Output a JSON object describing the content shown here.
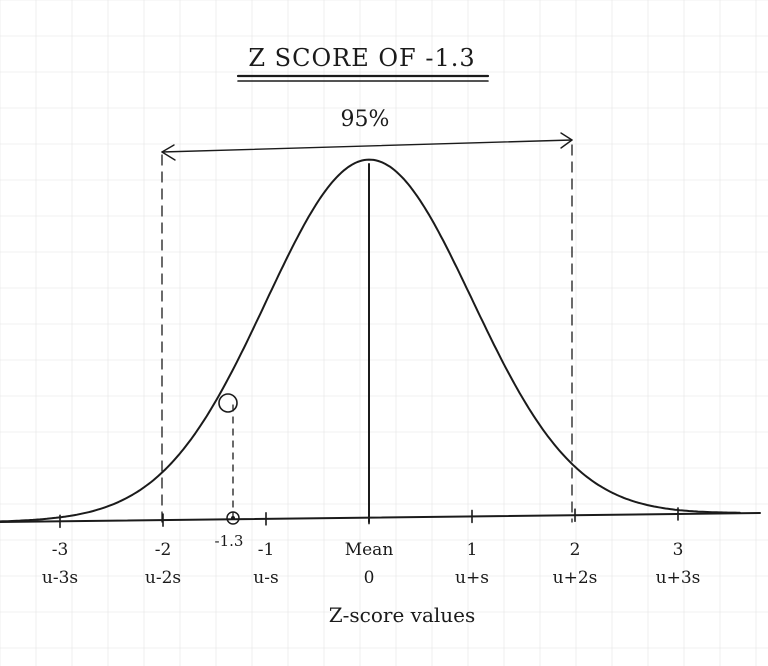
{
  "title": "Z SCORE OF -1.3",
  "interval_label": "95%",
  "axis_title": "Z-score values",
  "ticks": [
    {
      "z": "-3",
      "sigma": "u-3s"
    },
    {
      "z": "-2",
      "sigma": "u-2s"
    },
    {
      "z": "-1",
      "sigma": "u-s"
    },
    {
      "z": "Mean",
      "sigma": "0"
    },
    {
      "z": "1",
      "sigma": "u+s"
    },
    {
      "z": "2",
      "sigma": "u+2s"
    },
    {
      "z": "3",
      "sigma": "u+3s"
    }
  ],
  "marker_label": "-1.3",
  "chart_data": {
    "type": "line",
    "curve": "normal distribution",
    "x_ticks": [
      -3,
      -2,
      -1,
      0,
      1,
      2,
      3
    ],
    "marked_z": -1.3,
    "interval": [
      -2,
      2
    ],
    "interval_percent": 95
  },
  "colors": {
    "ink": "#1b1b1b",
    "grid": "#e4e4e4",
    "paper": "#ffffff"
  }
}
